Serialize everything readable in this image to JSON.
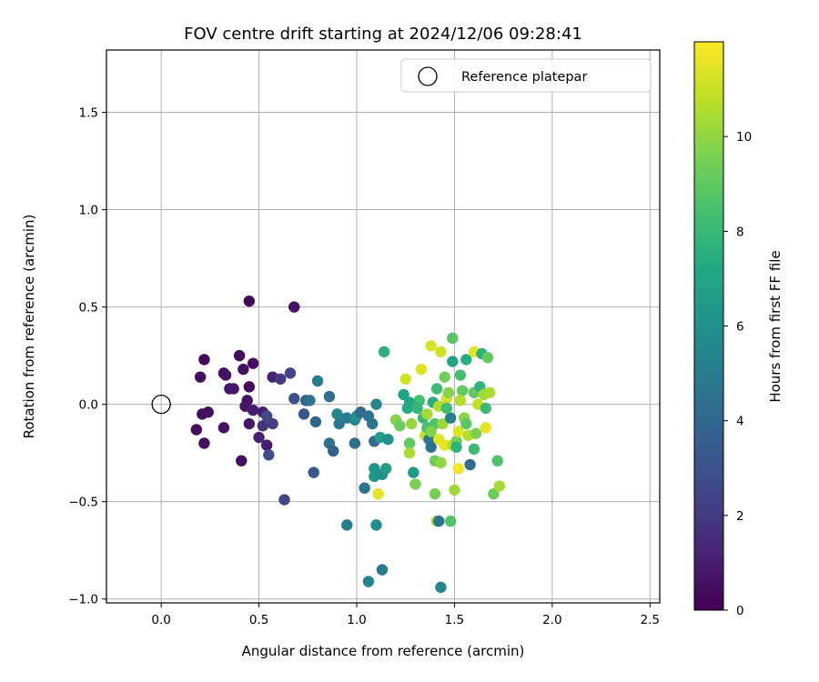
{
  "chart_data": {
    "type": "scatter",
    "title": "FOV centre drift starting at 2024/12/06 09:28:41",
    "xlabel": "Angular distance from reference (arcmin)",
    "ylabel": "Rotation from reference (arcmin)",
    "xlim": [
      -0.28,
      2.55
    ],
    "ylim": [
      -1.02,
      1.82
    ],
    "xticks": [
      0.0,
      0.5,
      1.0,
      1.5,
      2.0,
      2.5
    ],
    "xtick_labels": [
      "0.0",
      "0.5",
      "1.0",
      "1.5",
      "2.0",
      "2.5"
    ],
    "yticks": [
      -1.0,
      -0.5,
      0.0,
      0.5,
      1.0,
      1.5
    ],
    "ytick_labels": [
      "−1.0",
      "−0.5",
      "0.0",
      "0.5",
      "1.0",
      "1.5"
    ],
    "grid": true,
    "legend": {
      "placement": "top-right",
      "entries": [
        "Reference platepar"
      ]
    },
    "colorbar": {
      "label": "Hours from first FF file",
      "range": [
        0,
        12
      ],
      "ticks": [
        0,
        2,
        4,
        6,
        8,
        10
      ],
      "tick_labels": [
        "0",
        "2",
        "4",
        "6",
        "8",
        "10"
      ],
      "colormap": "viridis"
    },
    "reference_point": {
      "x": 0.0,
      "y": 0.0
    },
    "points": [
      {
        "x": 0.45,
        "y": 0.53,
        "h": 0.3
      },
      {
        "x": 0.68,
        "y": 0.5,
        "h": 0.6
      },
      {
        "x": 0.22,
        "y": 0.23,
        "h": 0.2
      },
      {
        "x": 0.4,
        "y": 0.25,
        "h": 0.3
      },
      {
        "x": 0.47,
        "y": 0.21,
        "h": 0.4
      },
      {
        "x": 0.42,
        "y": 0.18,
        "h": 0.5
      },
      {
        "x": 0.32,
        "y": 0.16,
        "h": 0.5
      },
      {
        "x": 0.33,
        "y": 0.15,
        "h": 0.6
      },
      {
        "x": 0.2,
        "y": 0.14,
        "h": 0.4
      },
      {
        "x": 0.35,
        "y": 0.08,
        "h": 0.7
      },
      {
        "x": 0.37,
        "y": 0.08,
        "h": 0.8
      },
      {
        "x": 0.45,
        "y": 0.09,
        "h": 0.3
      },
      {
        "x": 0.44,
        "y": 0.02,
        "h": 0.6
      },
      {
        "x": 0.43,
        "y": -0.01,
        "h": 0.7
      },
      {
        "x": 0.47,
        "y": -0.03,
        "h": 0.9
      },
      {
        "x": 0.21,
        "y": -0.05,
        "h": 0.4
      },
      {
        "x": 0.24,
        "y": -0.04,
        "h": 0.5
      },
      {
        "x": 0.52,
        "y": -0.04,
        "h": 1.0
      },
      {
        "x": 0.45,
        "y": -0.1,
        "h": 0.8
      },
      {
        "x": 0.18,
        "y": -0.13,
        "h": 0.3
      },
      {
        "x": 0.32,
        "y": -0.12,
        "h": 0.6
      },
      {
        "x": 0.22,
        "y": -0.2,
        "h": 0.4
      },
      {
        "x": 0.5,
        "y": -0.17,
        "h": 1.1
      },
      {
        "x": 0.54,
        "y": -0.21,
        "h": 0.9
      },
      {
        "x": 0.41,
        "y": -0.29,
        "h": 0.5
      },
      {
        "x": 0.57,
        "y": 0.14,
        "h": 1.2
      },
      {
        "x": 0.61,
        "y": 0.13,
        "h": 2.0
      },
      {
        "x": 0.66,
        "y": 0.16,
        "h": 2.4
      },
      {
        "x": 0.54,
        "y": -0.06,
        "h": 2.6
      },
      {
        "x": 0.52,
        "y": -0.11,
        "h": 1.8
      },
      {
        "x": 0.57,
        "y": -0.1,
        "h": 2.2
      },
      {
        "x": 0.55,
        "y": -0.26,
        "h": 2.8
      },
      {
        "x": 0.63,
        "y": -0.49,
        "h": 2.5
      },
      {
        "x": 0.68,
        "y": 0.03,
        "h": 3.0
      },
      {
        "x": 0.73,
        "y": -0.05,
        "h": 3.2
      },
      {
        "x": 0.74,
        "y": 0.02,
        "h": 3.6
      },
      {
        "x": 0.76,
        "y": 0.02,
        "h": 4.6
      },
      {
        "x": 0.79,
        "y": -0.09,
        "h": 4.0
      },
      {
        "x": 0.78,
        "y": -0.35,
        "h": 3.3
      },
      {
        "x": 0.8,
        "y": 0.12,
        "h": 5.2
      },
      {
        "x": 0.86,
        "y": 0.04,
        "h": 4.2
      },
      {
        "x": 0.86,
        "y": -0.2,
        "h": 4.4
      },
      {
        "x": 0.88,
        "y": -0.24,
        "h": 3.8
      },
      {
        "x": 0.9,
        "y": -0.05,
        "h": 5.6
      },
      {
        "x": 0.91,
        "y": -0.1,
        "h": 4.8
      },
      {
        "x": 0.95,
        "y": -0.07,
        "h": 5.0
      },
      {
        "x": 0.99,
        "y": -0.08,
        "h": 5.4
      },
      {
        "x": 1.0,
        "y": -0.06,
        "h": 5.8
      },
      {
        "x": 1.02,
        "y": -0.04,
        "h": 4.1
      },
      {
        "x": 0.99,
        "y": -0.2,
        "h": 4.3
      },
      {
        "x": 1.06,
        "y": -0.06,
        "h": 4.5
      },
      {
        "x": 1.08,
        "y": -0.1,
        "h": 4.7
      },
      {
        "x": 1.09,
        "y": -0.19,
        "h": 4.2
      },
      {
        "x": 1.04,
        "y": -0.43,
        "h": 4.6
      },
      {
        "x": 1.09,
        "y": -0.33,
        "h": 6.2
      },
      {
        "x": 1.09,
        "y": -0.37,
        "h": 6.4
      },
      {
        "x": 1.13,
        "y": -0.36,
        "h": 5.9
      },
      {
        "x": 1.15,
        "y": -0.33,
        "h": 6.6
      },
      {
        "x": 0.95,
        "y": -0.62,
        "h": 5.1
      },
      {
        "x": 1.1,
        "y": -0.62,
        "h": 5.7
      },
      {
        "x": 1.06,
        "y": -0.91,
        "h": 5.3
      },
      {
        "x": 1.13,
        "y": -0.85,
        "h": 5.0
      },
      {
        "x": 1.1,
        "y": 0.0,
        "h": 5.5
      },
      {
        "x": 1.12,
        "y": -0.17,
        "h": 6.8
      },
      {
        "x": 1.16,
        "y": -0.18,
        "h": 6.0
      },
      {
        "x": 1.14,
        "y": 0.27,
        "h": 7.6
      },
      {
        "x": 1.2,
        "y": -0.08,
        "h": 9.8
      },
      {
        "x": 1.22,
        "y": -0.11,
        "h": 9.2
      },
      {
        "x": 1.25,
        "y": 0.13,
        "h": 11.2
      },
      {
        "x": 1.24,
        "y": 0.05,
        "h": 6.9
      },
      {
        "x": 1.26,
        "y": -0.02,
        "h": 7.3
      },
      {
        "x": 1.28,
        "y": -0.1,
        "h": 10.1
      },
      {
        "x": 1.27,
        "y": -0.2,
        "h": 9.0
      },
      {
        "x": 1.27,
        "y": -0.25,
        "h": 10.5
      },
      {
        "x": 1.29,
        "y": -0.35,
        "h": 6.6
      },
      {
        "x": 1.3,
        "y": -0.41,
        "h": 9.6
      },
      {
        "x": 1.32,
        "y": 0.02,
        "h": 8.4
      },
      {
        "x": 1.33,
        "y": 0.18,
        "h": 11.4
      },
      {
        "x": 1.34,
        "y": -0.07,
        "h": 8.0
      },
      {
        "x": 1.35,
        "y": -0.16,
        "h": 11.0
      },
      {
        "x": 1.36,
        "y": -0.05,
        "h": 10.4
      },
      {
        "x": 1.37,
        "y": -0.18,
        "h": 4.8
      },
      {
        "x": 1.38,
        "y": 0.3,
        "h": 11.3
      },
      {
        "x": 1.38,
        "y": -0.22,
        "h": 4.6
      },
      {
        "x": 1.39,
        "y": 0.01,
        "h": 7.4
      },
      {
        "x": 1.4,
        "y": -0.1,
        "h": 8.6
      },
      {
        "x": 1.4,
        "y": -0.29,
        "h": 9.2
      },
      {
        "x": 1.41,
        "y": 0.08,
        "h": 8.2
      },
      {
        "x": 1.42,
        "y": -0.01,
        "h": 10.6
      },
      {
        "x": 1.42,
        "y": -0.18,
        "h": 11.5
      },
      {
        "x": 1.43,
        "y": -0.3,
        "h": 10.0
      },
      {
        "x": 1.43,
        "y": 0.27,
        "h": 11.1
      },
      {
        "x": 1.44,
        "y": -0.1,
        "h": 10.2
      },
      {
        "x": 1.45,
        "y": 0.14,
        "h": 9.4
      },
      {
        "x": 1.45,
        "y": -0.21,
        "h": 11.6
      },
      {
        "x": 1.46,
        "y": 0.03,
        "h": 11.2
      },
      {
        "x": 1.47,
        "y": 0.06,
        "h": 9.8
      },
      {
        "x": 1.48,
        "y": -0.07,
        "h": 5.2
      },
      {
        "x": 1.49,
        "y": 0.34,
        "h": 8.8
      },
      {
        "x": 1.49,
        "y": 0.22,
        "h": 7.0
      },
      {
        "x": 1.49,
        "y": -0.21,
        "h": 10.8
      },
      {
        "x": 1.5,
        "y": -0.44,
        "h": 10.3
      },
      {
        "x": 1.51,
        "y": -0.19,
        "h": 9.4
      },
      {
        "x": 1.52,
        "y": -0.14,
        "h": 11.4
      },
      {
        "x": 1.52,
        "y": -0.33,
        "h": 11.8
      },
      {
        "x": 1.53,
        "y": 0.15,
        "h": 8.4
      },
      {
        "x": 1.54,
        "y": 0.07,
        "h": 9.1
      },
      {
        "x": 1.55,
        "y": -0.07,
        "h": 9.9
      },
      {
        "x": 1.56,
        "y": 0.23,
        "h": 7.4
      },
      {
        "x": 1.56,
        "y": -0.1,
        "h": 8.9
      },
      {
        "x": 1.57,
        "y": -0.16,
        "h": 10.7
      },
      {
        "x": 1.58,
        "y": -0.31,
        "h": 4.2
      },
      {
        "x": 1.6,
        "y": 0.27,
        "h": 11.5
      },
      {
        "x": 1.6,
        "y": 0.06,
        "h": 9.0
      },
      {
        "x": 1.6,
        "y": -0.23,
        "h": 8.2
      },
      {
        "x": 1.61,
        "y": -0.15,
        "h": 9.6
      },
      {
        "x": 1.62,
        "y": 0.0,
        "h": 10.9
      },
      {
        "x": 1.63,
        "y": 0.09,
        "h": 7.8
      },
      {
        "x": 1.64,
        "y": 0.26,
        "h": 7.6
      },
      {
        "x": 1.65,
        "y": 0.05,
        "h": 10.3
      },
      {
        "x": 1.66,
        "y": -0.02,
        "h": 8.1
      },
      {
        "x": 1.66,
        "y": -0.12,
        "h": 11.6
      },
      {
        "x": 1.67,
        "y": 0.24,
        "h": 9.1
      },
      {
        "x": 1.68,
        "y": 0.06,
        "h": 10.5
      },
      {
        "x": 1.7,
        "y": -0.46,
        "h": 9.3
      },
      {
        "x": 1.72,
        "y": -0.29,
        "h": 8.6
      },
      {
        "x": 1.73,
        "y": -0.42,
        "h": 10.4
      },
      {
        "x": 1.4,
        "y": -0.46,
        "h": 9.5
      },
      {
        "x": 1.41,
        "y": -0.6,
        "h": 10.2
      },
      {
        "x": 1.42,
        "y": -0.6,
        "h": 4.7
      },
      {
        "x": 1.48,
        "y": -0.6,
        "h": 8.7
      },
      {
        "x": 1.43,
        "y": -0.94,
        "h": 5.4
      },
      {
        "x": 1.11,
        "y": -0.46,
        "h": 11.5
      },
      {
        "x": 1.27,
        "y": 0.01,
        "h": 7.2
      },
      {
        "x": 1.31,
        "y": -0.02,
        "h": 7.9
      },
      {
        "x": 1.36,
        "y": -0.12,
        "h": 8.5
      },
      {
        "x": 1.38,
        "y": -0.14,
        "h": 9.7
      },
      {
        "x": 1.46,
        "y": -0.02,
        "h": 8.3
      },
      {
        "x": 1.51,
        "y": -0.22,
        "h": 7.7
      },
      {
        "x": 1.53,
        "y": 0.02,
        "h": 10.6
      }
    ]
  }
}
